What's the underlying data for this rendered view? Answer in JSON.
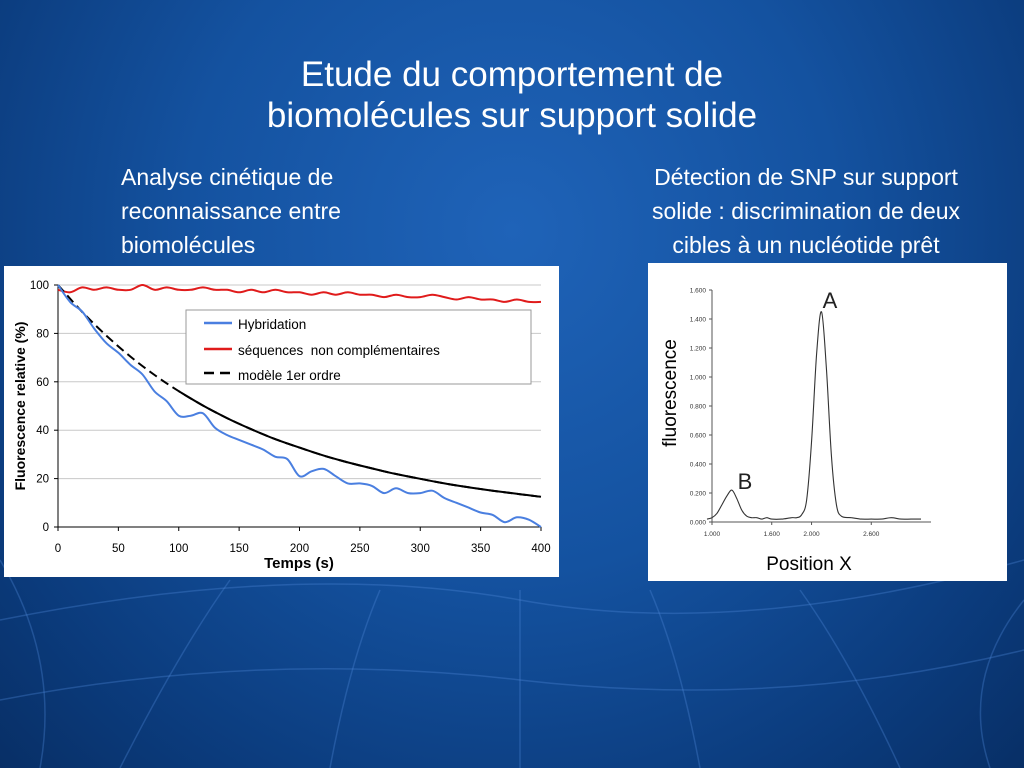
{
  "slide": {
    "title_line1": "Etude du comportement de",
    "title_line2": "biomolécules sur support solide",
    "left_caption": [
      "Analyse cinétique de",
      "reconnaissance entre",
      "biomolécules"
    ],
    "right_caption": [
      "Détection de SNP sur support",
      "solide : discrimination de deux",
      "cibles à un nucléotide prêt"
    ]
  },
  "colors": {
    "hybridation": "#4a7fe0",
    "non_complementaires": "#e01b1b",
    "modele": "#000000",
    "background": "#1452a0"
  },
  "chart_data": [
    {
      "type": "line",
      "title": "",
      "xlabel": "Temps (s)",
      "ylabel": "Fluorescence relative (%)",
      "xlim": [
        0,
        400
      ],
      "ylim": [
        0,
        100
      ],
      "x_ticks": [
        "0",
        "50",
        "100",
        "150",
        "200",
        "250",
        "300",
        "350",
        "400"
      ],
      "y_ticks": [
        "0",
        "20",
        "40",
        "60",
        "80",
        "100"
      ],
      "grid": "horizontal",
      "legend": "top-right",
      "legend_labels": [
        "Hybridation",
        "séquences  non complémentaires",
        "modèle 1er ordre"
      ],
      "series": [
        {
          "name": "Hybridation",
          "x": [
            0,
            10,
            20,
            30,
            40,
            50,
            60,
            70,
            80,
            90,
            100,
            110,
            120,
            130,
            140,
            150,
            160,
            170,
            180,
            190,
            200,
            210,
            220,
            230,
            240,
            250,
            260,
            270,
            280,
            290,
            300,
            310,
            320,
            330,
            340,
            350,
            360,
            370,
            380,
            390,
            400
          ],
          "y": [
            100,
            93,
            89,
            82,
            76,
            72,
            67,
            63,
            56,
            52,
            46,
            46,
            47,
            41,
            38,
            36,
            34,
            32,
            29,
            28,
            21,
            23,
            24,
            21,
            18,
            18,
            17,
            14,
            16,
            14,
            14,
            15,
            12,
            10,
            8,
            6,
            5,
            2,
            4,
            3,
            0
          ]
        },
        {
          "name": "séquences  non complémentaires",
          "x": [
            0,
            10,
            20,
            30,
            40,
            50,
            60,
            70,
            80,
            90,
            100,
            110,
            120,
            130,
            140,
            150,
            160,
            170,
            180,
            190,
            200,
            210,
            220,
            230,
            240,
            250,
            260,
            270,
            280,
            290,
            300,
            310,
            320,
            330,
            340,
            350,
            360,
            370,
            380,
            390,
            400
          ],
          "y": [
            98,
            97,
            99,
            98,
            99,
            98,
            98,
            100,
            98,
            99,
            98,
            98,
            99,
            98,
            98,
            97,
            98,
            97,
            98,
            97,
            97,
            96,
            97,
            96,
            97,
            96,
            96,
            95,
            96,
            95,
            95,
            96,
            95,
            94,
            95,
            94,
            94,
            93,
            94,
            93,
            93
          ]
        },
        {
          "name": "modèle 1er ordre",
          "x": [
            0,
            20,
            40,
            60,
            80,
            100,
            120,
            140,
            160,
            180,
            200,
            220,
            240,
            260,
            280,
            300,
            320,
            340,
            360,
            380,
            400
          ],
          "y": [
            100,
            88.9,
            79.1,
            70.4,
            62.8,
            56.1,
            50.2,
            45.0,
            40.4,
            36.3,
            32.8,
            29.5,
            26.7,
            24.2,
            21.9,
            19.9,
            18.0,
            16.4,
            15.0,
            13.7,
            12.5
          ]
        }
      ]
    },
    {
      "type": "line",
      "title": "",
      "xlabel": "Position X",
      "ylabel": "fluorescence",
      "xlim": [
        1.0,
        3.2
      ],
      "ylim": [
        0,
        1.6
      ],
      "x_ticks": [
        "1.000",
        "1.600",
        "2.000",
        "2.600"
      ],
      "y_ticks": [
        "0.000",
        "0.200",
        "0.400",
        "0.600",
        "0.800",
        "1.000",
        "1.200",
        "1.400",
        "1.600"
      ],
      "grid": "off",
      "annotations": [
        "A",
        "B"
      ],
      "series": [
        {
          "x": [
            0.95,
            1.0,
            1.05,
            1.1,
            1.15,
            1.2,
            1.25,
            1.3,
            1.35,
            1.4,
            1.45,
            1.5,
            1.55,
            1.6,
            1.7,
            1.8,
            1.85,
            1.9,
            1.95,
            2.0,
            2.05,
            2.1,
            2.15,
            2.2,
            2.25,
            2.3,
            2.4,
            2.5,
            2.6,
            2.7,
            2.8,
            2.9,
            3.0,
            3.1
          ],
          "y": [
            0.02,
            0.03,
            0.06,
            0.12,
            0.18,
            0.22,
            0.16,
            0.08,
            0.04,
            0.03,
            0.03,
            0.02,
            0.03,
            0.02,
            0.02,
            0.03,
            0.03,
            0.05,
            0.15,
            0.55,
            1.15,
            1.45,
            1.05,
            0.45,
            0.12,
            0.04,
            0.03,
            0.02,
            0.02,
            0.02,
            0.03,
            0.02,
            0.02,
            0.02
          ]
        }
      ]
    }
  ]
}
